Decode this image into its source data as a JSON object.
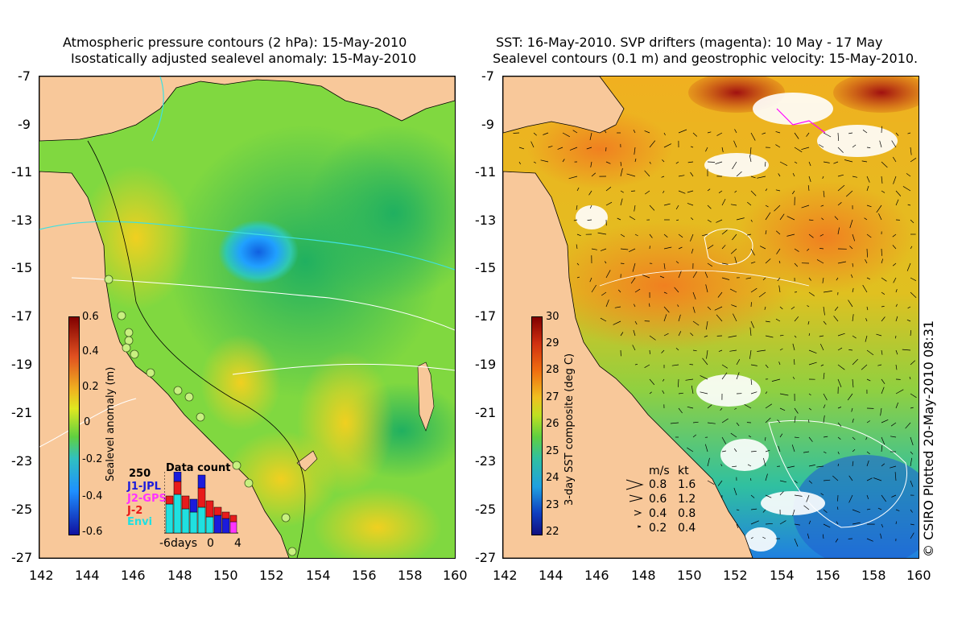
{
  "left": {
    "title_line1": "Atmospheric pressure contours (2 hPa): 15-May-2010",
    "title_line2": "Isostatically adjusted sealevel anomaly: 15-May-2010",
    "colorbar": {
      "title": "Sealevel anomaly (m)",
      "labels": [
        "0.6",
        "0.4",
        "0.2",
        "0",
        "-0.2",
        "-0.4",
        "-0.6"
      ]
    },
    "data_count": {
      "title": "Data count",
      "max": "250",
      "missions": [
        {
          "name": "J1-JPL",
          "color": "#1b1bdc"
        },
        {
          "name": "J2-GPS",
          "color": "#ff33ff"
        },
        {
          "name": "J-2",
          "color": "#e81b1b"
        },
        {
          "name": "Envi",
          "color": "#20e0e0"
        }
      ],
      "xlabels": [
        "-6days",
        "0",
        "4"
      ]
    }
  },
  "right": {
    "title_line1": "SST: 16-May-2010. SVP drifters (magenta): 10 May - 17 May",
    "title_line2": "Sealevel contours (0.1 m) and geostrophic velocity: 15-May-2010.",
    "colorbar": {
      "title": "3-day SST composite (deg C)",
      "labels": [
        "30",
        "29",
        "28",
        "27",
        "26",
        "25",
        "24",
        "23",
        "22"
      ]
    },
    "velocity_legend": {
      "header_ms": "m/s",
      "header_kt": "kt",
      "rows": [
        {
          "ms": "0.8",
          "kt": "1.6"
        },
        {
          "ms": "0.6",
          "kt": "1.2"
        },
        {
          "ms": "0.4",
          "kt": "0.8"
        },
        {
          "ms": "0.2",
          "kt": "0.4"
        }
      ]
    }
  },
  "axes": {
    "y_ticks": [
      "-7",
      "-9",
      "-11",
      "-13",
      "-15",
      "-17",
      "-19",
      "-21",
      "-23",
      "-25",
      "-27"
    ],
    "x_ticks": [
      "142",
      "144",
      "146",
      "148",
      "150",
      "152",
      "154",
      "156",
      "158",
      "160"
    ]
  },
  "credit": "© CSIRO Plotted 20-May-2010 08:31",
  "colors": {
    "land": "#f8c89a",
    "sea_green": "#7ad84a",
    "sea_yellow": "#e0e820",
    "anomaly_low": "#1e90ff"
  }
}
